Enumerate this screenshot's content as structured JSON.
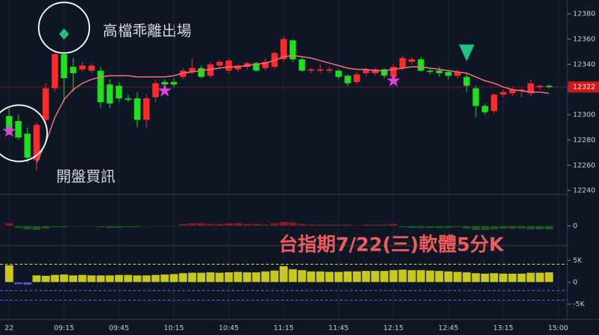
{
  "chart_data": [
    {
      "type": "candlestick",
      "up_color": "#ff2a2a",
      "down_color": "#1fe01f",
      "ylim": [
        12237,
        12391
      ],
      "yticks": [
        12240,
        12260,
        12280,
        12300,
        12320,
        12340,
        12360,
        12380
      ],
      "categories": [
        "22",
        null,
        null,
        null,
        null,
        null,
        "09:15",
        null,
        null,
        null,
        null,
        null,
        "09:45",
        null,
        null,
        null,
        null,
        null,
        "10:15",
        null,
        null,
        null,
        null,
        null,
        "10:45",
        null,
        null,
        null,
        null,
        null,
        "11:15",
        null,
        null,
        null,
        null,
        null,
        "11:45",
        null,
        null,
        null,
        null,
        null,
        "12:15",
        null,
        null,
        null,
        null,
        null,
        "12:45",
        null,
        null,
        null,
        null,
        null,
        "13:15",
        null,
        null,
        null,
        null,
        null,
        "15:00"
      ],
      "open": [
        12299,
        12295,
        12285,
        12264,
        12296,
        12321,
        12348,
        12338,
        12336,
        12335,
        12335,
        12324,
        12323,
        12313,
        12313,
        12296,
        12314,
        12326,
        12326,
        12330,
        12334,
        12337,
        12331,
        12339,
        12335,
        12336,
        12338,
        12341,
        12337,
        12338,
        12344,
        12359,
        12344,
        12335,
        12335,
        12335,
        12335,
        12331,
        12326,
        12333,
        12333,
        12336,
        12330,
        12337,
        12342,
        12344,
        12335,
        12335,
        12334,
        12331,
        12330,
        12321,
        12307,
        12303,
        12316,
        12317,
        12319,
        12317,
        12322,
        12323,
        null
      ],
      "high": [
        12305,
        12300,
        12290,
        12294,
        12325,
        12350,
        12350,
        12345,
        12342,
        12341,
        12338,
        12328,
        12326,
        12316,
        12318,
        12316,
        12328,
        12328,
        12329,
        12337,
        12345,
        12339,
        12342,
        12343,
        12345,
        12340,
        12342,
        12342,
        12345,
        12350,
        12362,
        12360,
        12345,
        12337,
        12340,
        12338,
        12336,
        12332,
        12334,
        12337,
        12337,
        12337,
        12340,
        12347,
        12346,
        12346,
        12337,
        12338,
        12336,
        12336,
        12333,
        12323,
        12309,
        12317,
        12320,
        12322,
        12321,
        12328,
        12324,
        12324,
        null
      ],
      "low": [
        12284,
        12280,
        12262,
        12256,
        12294,
        12318,
        12310,
        12318,
        12334,
        12333,
        12306,
        12305,
        12310,
        12310,
        12290,
        12290,
        12310,
        12322,
        12322,
        12328,
        12332,
        12329,
        12329,
        12337,
        12333,
        12334,
        12336,
        12334,
        12335,
        12336,
        12342,
        12342,
        12334,
        12333,
        12333,
        12333,
        12328,
        12323,
        12324,
        12331,
        12331,
        12329,
        12328,
        12335,
        12340,
        12334,
        12332,
        12330,
        12328,
        12329,
        12318,
        12298,
        12300,
        12301,
        12314,
        12315,
        12314,
        12315,
        12320,
        12321,
        null
      ],
      "close": [
        12288,
        12282,
        12266,
        12292,
        12321,
        12348,
        12329,
        12333,
        12339,
        12339,
        12310,
        12309,
        12313,
        12312,
        12296,
        12313,
        12325,
        12324,
        12324,
        12335,
        12337,
        12330,
        12340,
        12342,
        12343,
        12339,
        12341,
        12335,
        12342,
        12349,
        12360,
        12344,
        12335,
        12336,
        12336,
        12336,
        12330,
        12325,
        12332,
        12336,
        12336,
        12331,
        12338,
        12345,
        12344,
        12335,
        12334,
        12333,
        12331,
        12334,
        12323,
        12307,
        12302,
        12316,
        12318,
        12320,
        12320,
        12325,
        12323,
        12322,
        null
      ],
      "ma": {
        "color": "#f07080",
        "values": [
          null,
          null,
          null,
          12262,
          12278,
          12298,
          12312,
          12320,
          12325,
          12328,
          12330,
          12331,
          12331,
          12331,
          12330,
          12330,
          12330,
          12330,
          12331,
          12333,
          12334,
          12335,
          12336,
          12337,
          12338,
          12338,
          12339,
          12340,
          12341,
          12343,
          12346,
          12347,
          12346,
          12345,
          12343,
          12341,
          12339,
          12337,
          12336,
          12336,
          12335,
          12335,
          12336,
          12337,
          12338,
          12338,
          12337,
          12336,
          12335,
          12334,
          12333,
          12330,
          12327,
          12325,
          12322,
          12320,
          12319,
          12318,
          12318,
          12317,
          null
        ]
      },
      "last_price": 12322,
      "signals": [
        {
          "shape": "star",
          "index": 0,
          "value": 12287,
          "circled": true
        },
        {
          "shape": "star",
          "index": 17,
          "value": 12319
        },
        {
          "shape": "star",
          "index": 42,
          "value": 12327
        },
        {
          "shape": "diamond",
          "index": 6,
          "value": 12364,
          "circled": true
        },
        {
          "shape": "triangle",
          "index": 50,
          "value": 12349
        }
      ],
      "annotations": [
        "高檔乖離出場",
        "開盤買訊"
      ]
    },
    {
      "type": "histogram",
      "ylim": [
        -2.7,
        4.3
      ],
      "yticks": [
        0
      ],
      "pos_color": "#8a1c1c",
      "neg_color": "#1e5a1e",
      "values": [
        0.4,
        -0.3,
        -0.5,
        -0.6,
        -0.4,
        -0.2,
        -0.2,
        -0.1,
        -0.1,
        -0.1,
        -0.2,
        -0.3,
        -0.3,
        -0.2,
        -0.2,
        -0.1,
        -0.1,
        -0.1,
        -0.1,
        0.3,
        0.4,
        0.4,
        0.3,
        0.3,
        0.4,
        0.4,
        0.3,
        0.3,
        0.2,
        0.4,
        0.6,
        0.5,
        0.3,
        0.2,
        0.2,
        0.2,
        0.2,
        0.2,
        0.1,
        0.2,
        0.2,
        0.2,
        0.3,
        -0.2,
        -0.3,
        -0.3,
        -0.3,
        -0.3,
        -0.3,
        -0.2,
        -0.4,
        -0.6,
        -0.6,
        -0.5,
        -0.4,
        -0.4,
        -0.4,
        -0.5,
        -0.5,
        -0.5,
        null
      ]
    },
    {
      "type": "histogram",
      "title": "台指期7/22(三)軟體5分K",
      "ylim": [
        -8200,
        8200
      ],
      "yticks": [
        {
          "value": 5000,
          "label": "5K"
        },
        0,
        {
          "value": -5000,
          "label": "-5K"
        }
      ],
      "pos_color": "#c8c81e",
      "neg_color": "#5a50c8",
      "levels": [
        {
          "value": 4100,
          "color": "#e6e628"
        },
        {
          "value": -1900,
          "color": "#6a5cff"
        },
        {
          "value": -4100,
          "color": "#6a5cff"
        }
      ],
      "values": [
        3900,
        -500,
        -600,
        1600,
        1500,
        1700,
        1800,
        1600,
        1700,
        1600,
        1600,
        1600,
        1700,
        1700,
        1600,
        1600,
        1700,
        1800,
        1900,
        2100,
        2200,
        2200,
        2300,
        2200,
        2300,
        2400,
        2300,
        2300,
        2500,
        2700,
        3700,
        3000,
        2800,
        2500,
        2500,
        2400,
        2400,
        2500,
        2500,
        2600,
        2600,
        2600,
        2800,
        2900,
        2800,
        2800,
        2700,
        2600,
        2500,
        2400,
        2300,
        2100,
        2000,
        2100,
        2000,
        2000,
        2000,
        2200,
        2200,
        2300,
        null
      ]
    }
  ]
}
